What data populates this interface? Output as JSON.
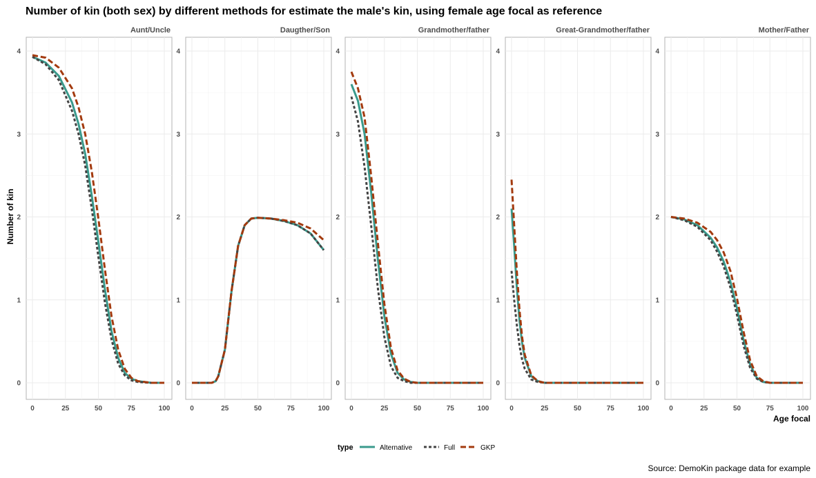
{
  "chart_data": {
    "type": "line",
    "title": "Number of kin (both sex) by different methods for estimate the male's kin, using female age focal as reference",
    "xlabel": "Age focal",
    "ylabel": "Number of kin",
    "caption": "Source: DemoKin package data for example",
    "xlim": [
      0,
      100
    ],
    "ylim": [
      0,
      4
    ],
    "x_ticks": [
      "0",
      "25",
      "50",
      "75",
      "100"
    ],
    "y_ticks": [
      "0",
      "1",
      "2",
      "3",
      "4"
    ],
    "grid": true,
    "legend": {
      "title": "type",
      "position": "bottom",
      "entries": [
        {
          "label": "Alternative",
          "color": "#3a9a8c",
          "dash": "solid"
        },
        {
          "label": "Full",
          "color": "#444444",
          "dash": "dotted"
        },
        {
          "label": "GKP",
          "color": "#a33a0e",
          "dash": "dashed"
        }
      ]
    },
    "panels": [
      {
        "label": "Aunt/Uncle",
        "series": [
          {
            "name": "Alternative",
            "x": [
              0,
              10,
              20,
              30,
              35,
              40,
              45,
              50,
              55,
              60,
              65,
              70,
              75,
              80,
              90,
              100
            ],
            "y": [
              3.93,
              3.86,
              3.7,
              3.38,
              3.12,
              2.76,
              2.26,
              1.7,
              1.12,
              0.62,
              0.3,
              0.12,
              0.05,
              0.02,
              0.0,
              0.0
            ]
          },
          {
            "name": "Full",
            "x": [
              0,
              10,
              20,
              30,
              35,
              40,
              45,
              50,
              55,
              60,
              65,
              70,
              75,
              80,
              90,
              100
            ],
            "y": [
              3.93,
              3.84,
              3.65,
              3.28,
              3.0,
              2.62,
              2.1,
              1.52,
              0.96,
              0.52,
              0.23,
              0.09,
              0.03,
              0.01,
              0.0,
              0.0
            ]
          },
          {
            "name": "GKP",
            "x": [
              0,
              10,
              20,
              30,
              35,
              40,
              45,
              50,
              55,
              60,
              65,
              70,
              75,
              80,
              90,
              100
            ],
            "y": [
              3.95,
              3.92,
              3.8,
              3.55,
              3.32,
              3.0,
              2.55,
              1.98,
              1.36,
              0.8,
              0.4,
              0.17,
              0.06,
              0.02,
              0.0,
              0.0
            ]
          }
        ]
      },
      {
        "label": "Daugther/Son",
        "series": [
          {
            "name": "Alternative",
            "x": [
              0,
              10,
              15,
              18,
              20,
              25,
              30,
              35,
              40,
              45,
              50,
              60,
              70,
              80,
              90,
              100
            ],
            "y": [
              0.0,
              0.0,
              0.0,
              0.02,
              0.08,
              0.4,
              1.1,
              1.65,
              1.9,
              1.98,
              1.99,
              1.98,
              1.95,
              1.9,
              1.8,
              1.6
            ]
          },
          {
            "name": "Full",
            "x": [
              0,
              10,
              15,
              18,
              20,
              25,
              30,
              35,
              40,
              45,
              50,
              60,
              70,
              80,
              90,
              100
            ],
            "y": [
              0.0,
              0.0,
              0.0,
              0.02,
              0.08,
              0.4,
              1.1,
              1.65,
              1.9,
              1.98,
              1.99,
              1.98,
              1.95,
              1.9,
              1.8,
              1.6
            ]
          },
          {
            "name": "GKP",
            "x": [
              0,
              10,
              15,
              18,
              20,
              25,
              30,
              35,
              40,
              45,
              50,
              60,
              70,
              80,
              90,
              100
            ],
            "y": [
              0.0,
              0.0,
              0.0,
              0.02,
              0.08,
              0.4,
              1.1,
              1.65,
              1.9,
              1.98,
              1.99,
              1.98,
              1.96,
              1.93,
              1.86,
              1.72
            ]
          }
        ]
      },
      {
        "label": "Grandmother/father",
        "series": [
          {
            "name": "Alternative",
            "x": [
              0,
              5,
              10,
              15,
              20,
              25,
              30,
              35,
              40,
              45,
              50,
              60,
              80,
              100
            ],
            "y": [
              3.6,
              3.4,
              3.0,
              2.3,
              1.5,
              0.8,
              0.35,
              0.12,
              0.04,
              0.01,
              0.0,
              0.0,
              0.0,
              0.0
            ]
          },
          {
            "name": "Full",
            "x": [
              0,
              5,
              10,
              15,
              20,
              25,
              30,
              35,
              40,
              45,
              50,
              60,
              80,
              100
            ],
            "y": [
              3.45,
              3.15,
              2.6,
              1.9,
              1.15,
              0.55,
              0.2,
              0.06,
              0.02,
              0.0,
              0.0,
              0.0,
              0.0,
              0.0
            ]
          },
          {
            "name": "GKP",
            "x": [
              0,
              5,
              10,
              15,
              20,
              25,
              30,
              35,
              40,
              45,
              50,
              60,
              80,
              100
            ],
            "y": [
              3.75,
              3.55,
              3.2,
              2.5,
              1.7,
              0.95,
              0.42,
              0.15,
              0.05,
              0.01,
              0.0,
              0.0,
              0.0,
              0.0
            ]
          }
        ]
      },
      {
        "label": "Great-Grandmother/father",
        "series": [
          {
            "name": "Alternative",
            "x": [
              0,
              2,
              4,
              6,
              8,
              10,
              15,
              20,
              25,
              30,
              50,
              100
            ],
            "y": [
              2.1,
              1.65,
              1.15,
              0.75,
              0.48,
              0.3,
              0.08,
              0.02,
              0.0,
              0.0,
              0.0,
              0.0
            ]
          },
          {
            "name": "Full",
            "x": [
              0,
              2,
              4,
              6,
              8,
              10,
              15,
              20,
              25,
              30,
              50,
              100
            ],
            "y": [
              1.35,
              1.0,
              0.7,
              0.45,
              0.28,
              0.17,
              0.04,
              0.01,
              0.0,
              0.0,
              0.0,
              0.0
            ]
          },
          {
            "name": "GKP",
            "x": [
              0,
              2,
              4,
              6,
              8,
              10,
              15,
              20,
              25,
              30,
              50,
              100
            ],
            "y": [
              2.45,
              1.9,
              1.35,
              0.88,
              0.55,
              0.34,
              0.09,
              0.02,
              0.0,
              0.0,
              0.0,
              0.0
            ]
          }
        ]
      },
      {
        "label": "Mother/Father",
        "series": [
          {
            "name": "Alternative",
            "x": [
              0,
              10,
              20,
              30,
              35,
              40,
              45,
              50,
              55,
              60,
              65,
              70,
              75,
              80,
              100
            ],
            "y": [
              2.0,
              1.97,
              1.9,
              1.75,
              1.63,
              1.46,
              1.22,
              0.9,
              0.52,
              0.22,
              0.06,
              0.01,
              0.0,
              0.0,
              0.0
            ]
          },
          {
            "name": "Full",
            "x": [
              0,
              10,
              20,
              30,
              35,
              40,
              45,
              50,
              55,
              60,
              65,
              70,
              75,
              80,
              100
            ],
            "y": [
              2.0,
              1.96,
              1.88,
              1.72,
              1.58,
              1.4,
              1.15,
              0.82,
              0.45,
              0.18,
              0.05,
              0.01,
              0.0,
              0.0,
              0.0
            ]
          },
          {
            "name": "GKP",
            "x": [
              0,
              10,
              20,
              30,
              35,
              40,
              45,
              50,
              55,
              60,
              65,
              70,
              75,
              80,
              100
            ],
            "y": [
              2.0,
              1.98,
              1.93,
              1.82,
              1.72,
              1.57,
              1.35,
              1.02,
              0.62,
              0.27,
              0.08,
              0.02,
              0.0,
              0.0,
              0.0
            ]
          }
        ]
      }
    ]
  }
}
